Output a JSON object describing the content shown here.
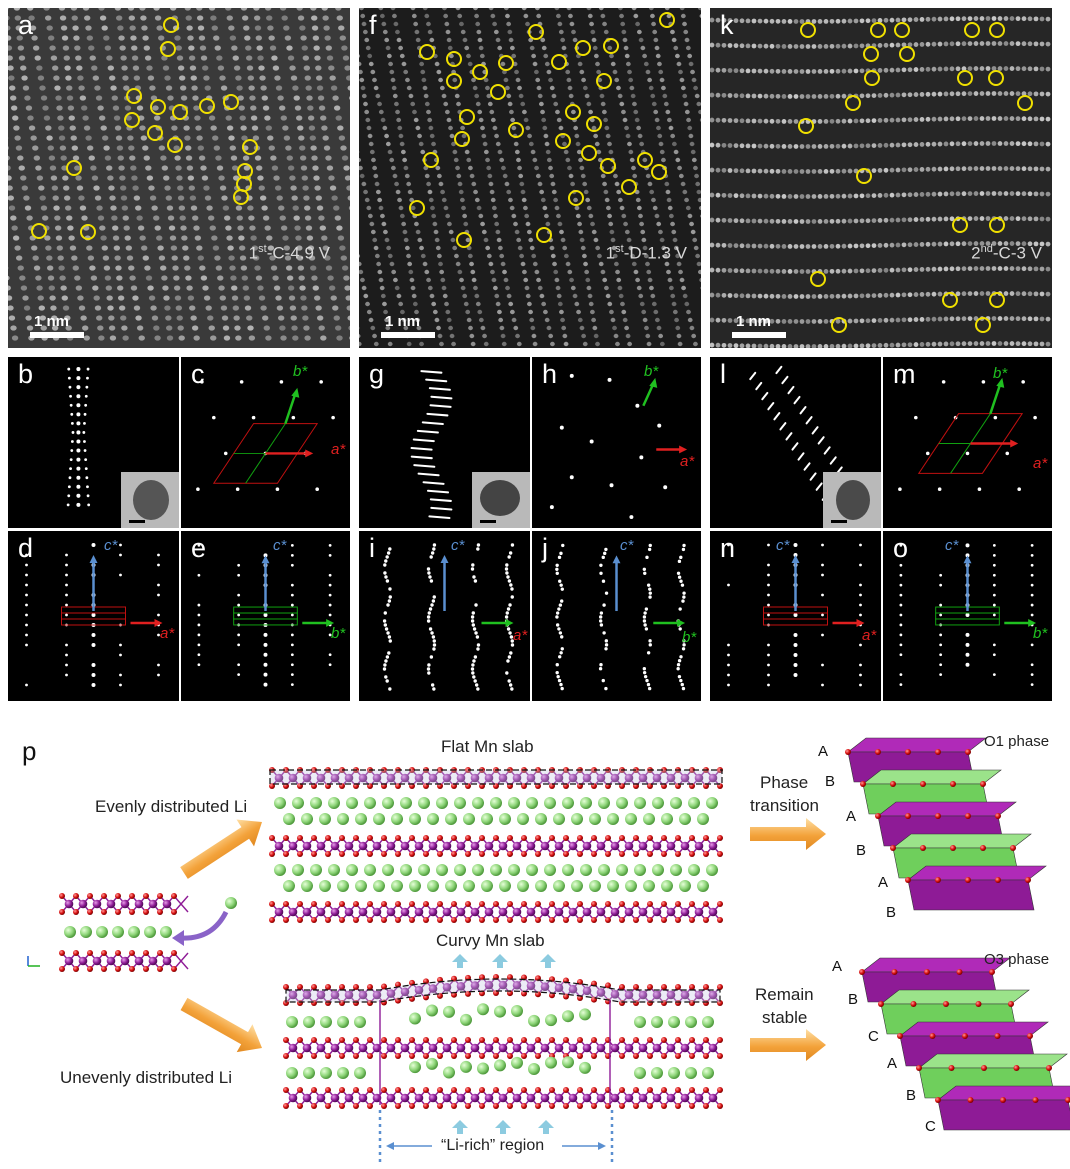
{
  "haadf_panels": [
    {
      "label": "a",
      "condition_prefix": "1",
      "condition_sup": "st",
      "condition_rest": "-C-4.9 V",
      "scalebar": "1 nm"
    },
    {
      "label": "f",
      "condition_prefix": "1",
      "condition_sup": "st",
      "condition_rest": "-D-1.3 V",
      "scalebar": "1 nm"
    },
    {
      "label": "k",
      "condition_prefix": "2",
      "condition_sup": "nd",
      "condition_rest": "-C-3 V",
      "scalebar": "1 nm"
    }
  ],
  "diffraction_panels": {
    "b": "b",
    "c": "c",
    "d": "d",
    "e": "e",
    "g": "g",
    "h": "h",
    "i": "i",
    "j": "j",
    "l": "l",
    "m": "m",
    "n": "n",
    "o": "o"
  },
  "axes": {
    "a_star": "a*",
    "b_star": "b*",
    "c_star": "c*"
  },
  "colors": {
    "a_axis": "#e02020",
    "b_axis": "#20c020",
    "c_axis": "#5a8fd0",
    "circle": "#f0e000",
    "mn": "#8e1b96",
    "o": "#d81010",
    "li": "#8fd67a",
    "arrow": "#f3a23a"
  },
  "schematic": {
    "label": "p",
    "flat_title": "Flat Mn slab",
    "curvy_title": "Curvy Mn slab",
    "even_label": "Evenly distributed Li",
    "uneven_label": "Unevenly distributed Li",
    "phase_transition_1": "Phase",
    "phase_transition_2": "transition",
    "remain_1": "Remain",
    "remain_2": "stable",
    "o1_label": "O1 phase",
    "o3_label": "O3 phase",
    "li_rich": "“Li-rich” region",
    "o1_stacking": [
      "A",
      "B",
      "A",
      "B",
      "A",
      "B"
    ],
    "o3_stacking": [
      "A",
      "B",
      "C",
      "A",
      "B",
      "C"
    ]
  }
}
